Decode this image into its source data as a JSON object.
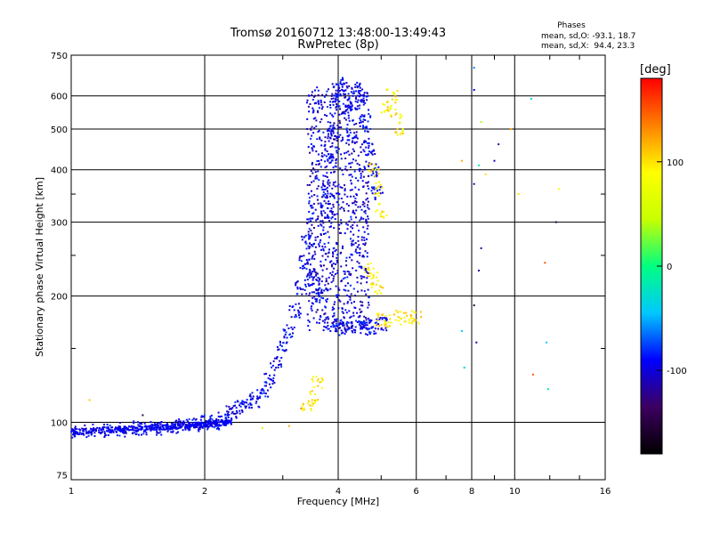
{
  "chart_data": {
    "type": "scatter",
    "title": "Tromsø 20160712 13:48:00-13:49:43",
    "subtitle": "RwPretec (8p)",
    "xlabel": "Frequency [MHz]",
    "ylabel": "Stationary phase Virtual Height [km]",
    "x_scale": "log",
    "y_scale": "log",
    "xlim": [
      1,
      16
    ],
    "ylim": [
      73,
      750
    ],
    "x_ticks": [
      1,
      2,
      4,
      6,
      8,
      10,
      16
    ],
    "y_ticks": [
      75,
      100,
      200,
      300,
      400,
      500,
      600,
      750
    ],
    "x_tick_labels": [
      "1",
      "2",
      "4",
      "6",
      "8",
      "10",
      "16"
    ],
    "y_tick_labels": [
      "75",
      "100",
      "200",
      "300",
      "400",
      "500",
      "600",
      "750"
    ],
    "grid": true,
    "legend": {
      "title": "Phases",
      "lines": [
        "mean, sd,O: -93.1, 18.7",
        "mean, sd,X:  94.4, 23.3"
      ],
      "position": "top-right"
    },
    "colorbar": {
      "label": "[deg]",
      "ticks": [
        100,
        0,
        -100
      ],
      "tick_labels": [
        "100",
        "0",
        "-100"
      ],
      "range": [
        -180,
        180
      ],
      "colors": [
        "#000000",
        "#3c0060",
        "#0000ff",
        "#00c8ff",
        "#00ff80",
        "#c8ff00",
        "#ffff00",
        "#ff8000",
        "#ff0000"
      ]
    },
    "series": [
      {
        "points": [
          [
            1.0,
            95
          ],
          [
            1.1,
            95
          ],
          [
            1.2,
            96
          ],
          [
            1.3,
            96
          ],
          [
            1.4,
            97
          ],
          [
            1.5,
            97
          ],
          [
            1.6,
            97
          ],
          [
            1.7,
            98
          ],
          [
            1.8,
            98
          ],
          [
            1.9,
            99
          ],
          [
            2.0,
            100
          ],
          [
            2.1,
            100
          ],
          [
            2.2,
            102
          ],
          [
            2.3,
            106
          ],
          [
            2.4,
            109
          ],
          [
            2.5,
            111
          ],
          [
            2.6,
            113
          ],
          [
            2.7,
            118
          ],
          [
            2.8,
            126
          ],
          [
            2.9,
            138
          ],
          [
            3.0,
            150
          ],
          [
            3.1,
            165
          ],
          [
            3.2,
            185
          ],
          [
            3.3,
            210
          ],
          [
            3.35,
            240
          ],
          [
            3.4,
            270
          ],
          [
            3.5,
            220
          ],
          [
            3.6,
            200
          ],
          [
            3.7,
            210
          ],
          [
            3.75,
            320
          ],
          [
            3.8,
            360
          ],
          [
            3.85,
            420
          ],
          [
            3.9,
            500
          ],
          [
            3.95,
            580
          ],
          [
            4.0,
            640
          ],
          [
            4.1,
            620
          ],
          [
            4.2,
            560
          ],
          [
            4.3,
            480
          ],
          [
            4.4,
            620
          ],
          [
            4.5,
            580
          ],
          [
            4.6,
            520
          ],
          [
            4.7,
            450
          ],
          [
            4.8,
            400
          ],
          [
            4.9,
            350
          ],
          [
            3.85,
            170
          ],
          [
            4.0,
            168
          ],
          [
            4.2,
            168
          ],
          [
            4.4,
            168
          ],
          [
            4.6,
            168
          ],
          [
            4.8,
            169
          ],
          [
            5.0,
            171
          ]
        ]
      },
      {
        "points": [
          [
            4.8,
            400
          ],
          [
            4.9,
            360
          ],
          [
            5.0,
            320
          ],
          [
            4.7,
            230
          ],
          [
            4.8,
            220
          ],
          [
            4.9,
            210
          ],
          [
            5.1,
            560
          ],
          [
            5.3,
            600
          ],
          [
            5.4,
            550
          ],
          [
            5.5,
            500
          ],
          [
            5.0,
            175
          ],
          [
            5.2,
            175
          ],
          [
            5.5,
            178
          ],
          [
            5.8,
            176
          ],
          [
            6.0,
            178
          ],
          [
            3.6,
            125
          ],
          [
            3.5,
            115
          ],
          [
            3.4,
            110
          ]
        ]
      }
    ]
  }
}
